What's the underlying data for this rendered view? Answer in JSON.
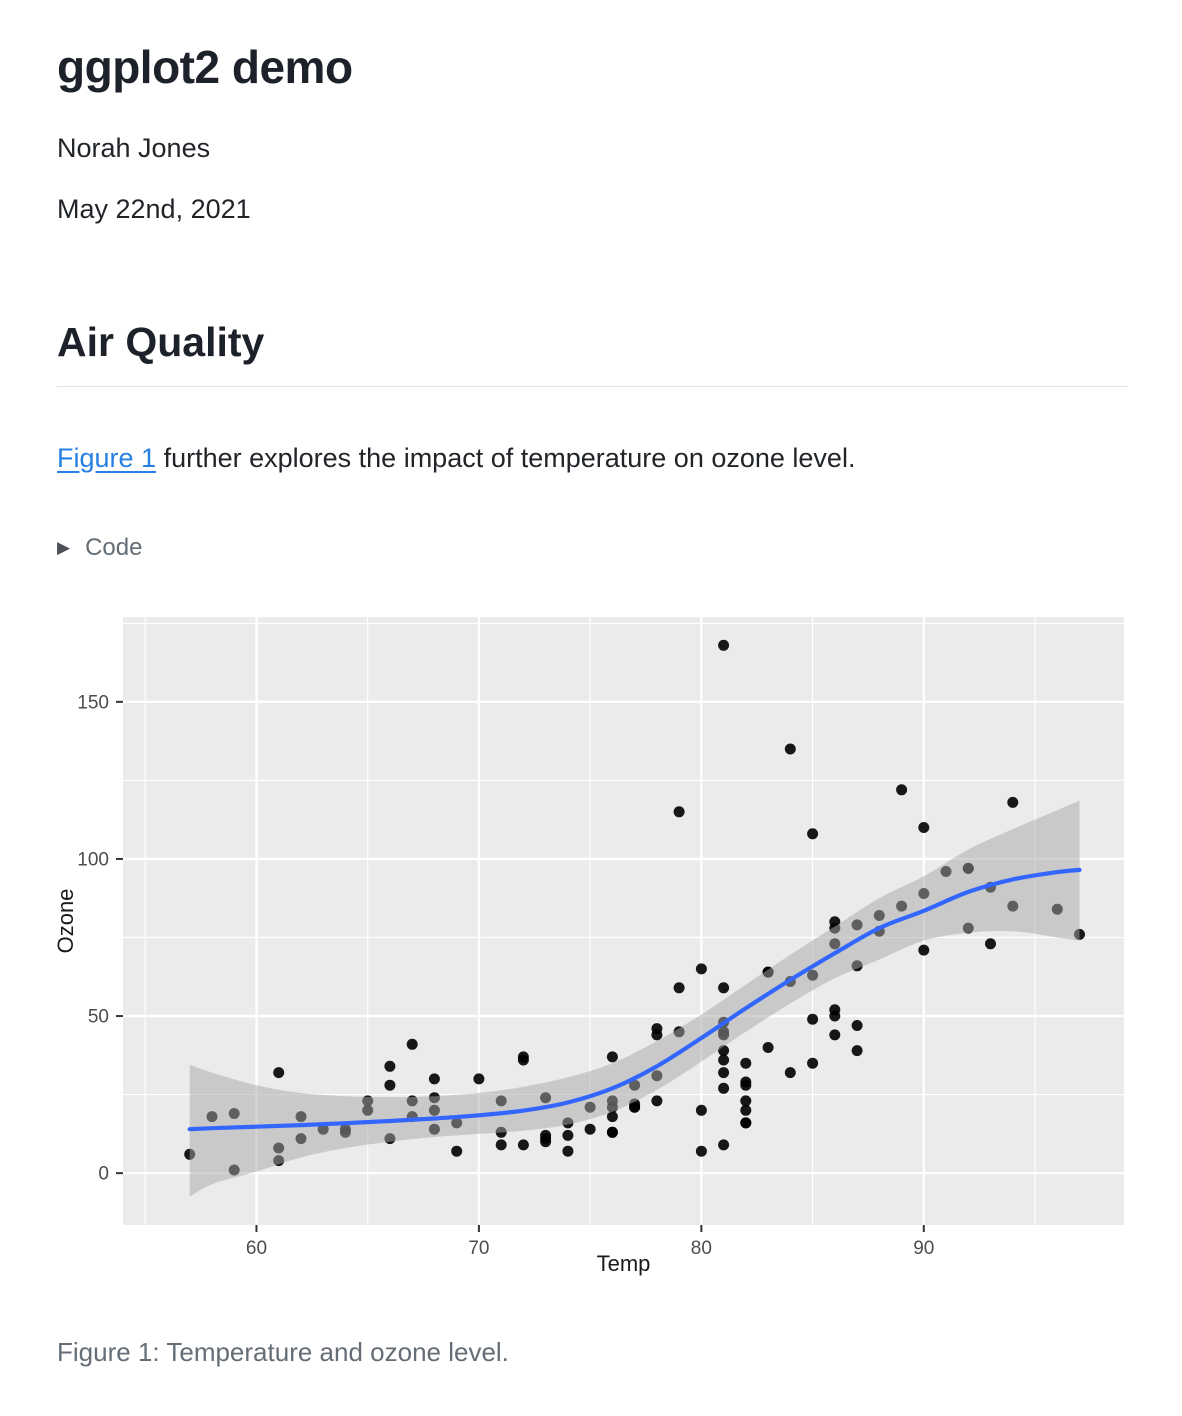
{
  "document": {
    "title": "ggplot2 demo",
    "author": "Norah Jones",
    "date": "May 22nd, 2021",
    "section_heading": "Air Quality",
    "paragraph": {
      "link_text": "Figure 1",
      "text_after_link": " further explores the impact of temperature on ozone level."
    },
    "code_folding_label": "Code",
    "figure_caption": "Figure 1: Temperature and ozone level."
  },
  "colors": {
    "link": "#2780e3",
    "body_text": "#212529",
    "muted_text": "#646c74",
    "caption_text": "#656d76",
    "heading_rule": "#dee2e6"
  },
  "chart_data": {
    "type": "scatter",
    "title": "",
    "xlabel": "Temp",
    "ylabel": "Ozone",
    "xlim": [
      54,
      99
    ],
    "ylim": [
      -16.5,
      177
    ],
    "x_ticks": [
      60,
      70,
      80,
      90
    ],
    "y_ticks": [
      0,
      50,
      100,
      150
    ],
    "x_minor": [
      55,
      65,
      75,
      85,
      95
    ],
    "y_minor": [
      25,
      75,
      125,
      175
    ],
    "grid": "on",
    "panel_bg": "#EBEBEB",
    "grid_color": "#FFFFFF",
    "point_color": "#000000",
    "line_color": "#3366FF",
    "ribbon_color": "#A8A8A8",
    "axis_text_color": "#4D4D4D",
    "axis_title_color": "#1A1A1A",
    "points_format": "[temp, ozone]",
    "points": [
      [
        67,
        41
      ],
      [
        72,
        36
      ],
      [
        74,
        12
      ],
      [
        62,
        18
      ],
      [
        66,
        28
      ],
      [
        65,
        23
      ],
      [
        59,
        19
      ],
      [
        61,
        8
      ],
      [
        74,
        7
      ],
      [
        69,
        16
      ],
      [
        66,
        11
      ],
      [
        68,
        14
      ],
      [
        58,
        18
      ],
      [
        64,
        14
      ],
      [
        66,
        34
      ],
      [
        57,
        6
      ],
      [
        68,
        30
      ],
      [
        62,
        11
      ],
      [
        59,
        1
      ],
      [
        73,
        11
      ],
      [
        61,
        4
      ],
      [
        61,
        32
      ],
      [
        67,
        23
      ],
      [
        81,
        45
      ],
      [
        79,
        115
      ],
      [
        76,
        37
      ],
      [
        82,
        29
      ],
      [
        90,
        71
      ],
      [
        87,
        39
      ],
      [
        82,
        23
      ],
      [
        77,
        21
      ],
      [
        72,
        37
      ],
      [
        65,
        20
      ],
      [
        73,
        12
      ],
      [
        76,
        13
      ],
      [
        84,
        135
      ],
      [
        85,
        49
      ],
      [
        81,
        32
      ],
      [
        83,
        64
      ],
      [
        83,
        40
      ],
      [
        88,
        77
      ],
      [
        92,
        97
      ],
      [
        92,
        97
      ],
      [
        89,
        85
      ],
      [
        73,
        10
      ],
      [
        81,
        27
      ],
      [
        80,
        7
      ],
      [
        81,
        48
      ],
      [
        82,
        35
      ],
      [
        84,
        61
      ],
      [
        87,
        79
      ],
      [
        85,
        63
      ],
      [
        74,
        16
      ],
      [
        86,
        80
      ],
      [
        85,
        108
      ],
      [
        82,
        20
      ],
      [
        86,
        52
      ],
      [
        88,
        82
      ],
      [
        86,
        50
      ],
      [
        83,
        64
      ],
      [
        81,
        59
      ],
      [
        81,
        39
      ],
      [
        81,
        9
      ],
      [
        82,
        16
      ],
      [
        86,
        78
      ],
      [
        85,
        35
      ],
      [
        87,
        66
      ],
      [
        89,
        122
      ],
      [
        90,
        89
      ],
      [
        90,
        110
      ],
      [
        86,
        44
      ],
      [
        82,
        28
      ],
      [
        80,
        65
      ],
      [
        77,
        22
      ],
      [
        79,
        59
      ],
      [
        76,
        23
      ],
      [
        78,
        31
      ],
      [
        78,
        44
      ],
      [
        77,
        21
      ],
      [
        72,
        9
      ],
      [
        79,
        45
      ],
      [
        81,
        168
      ],
      [
        86,
        73
      ],
      [
        97,
        76
      ],
      [
        94,
        118
      ],
      [
        96,
        84
      ],
      [
        94,
        85
      ],
      [
        91,
        96
      ],
      [
        92,
        78
      ],
      [
        93,
        73
      ],
      [
        93,
        91
      ],
      [
        87,
        47
      ],
      [
        84,
        32
      ],
      [
        80,
        20
      ],
      [
        78,
        23
      ],
      [
        75,
        21
      ],
      [
        73,
        24
      ],
      [
        81,
        44
      ],
      [
        76,
        21
      ],
      [
        77,
        28
      ],
      [
        71,
        9
      ],
      [
        71,
        13
      ],
      [
        78,
        46
      ],
      [
        67,
        18
      ],
      [
        76,
        13
      ],
      [
        68,
        24
      ],
      [
        82,
        16
      ],
      [
        64,
        13
      ],
      [
        71,
        23
      ],
      [
        81,
        36
      ],
      [
        69,
        7
      ],
      [
        63,
        14
      ],
      [
        70,
        30
      ],
      [
        75,
        14
      ],
      [
        76,
        18
      ],
      [
        68,
        20
      ]
    ],
    "smooth_format": "[temp, fit, ci_low, ci_high]",
    "smooth_method": "loess",
    "smooth": [
      [
        57,
        14.0,
        -7.5,
        34.5
      ],
      [
        58,
        14.3,
        -3.5,
        32.0
      ],
      [
        60,
        14.8,
        0.5,
        28.0
      ],
      [
        62,
        15.3,
        5.0,
        25.5
      ],
      [
        64,
        15.9,
        8.0,
        24.5
      ],
      [
        66,
        16.6,
        10.0,
        24.2
      ],
      [
        68,
        17.4,
        11.5,
        24.5
      ],
      [
        70,
        18.4,
        12.5,
        25.5
      ],
      [
        72,
        19.9,
        13.5,
        27.5
      ],
      [
        74,
        22.5,
        15.5,
        30.5
      ],
      [
        76,
        27.0,
        19.5,
        35.0
      ],
      [
        78,
        34.0,
        26.5,
        42.0
      ],
      [
        80,
        43.0,
        35.5,
        50.5
      ],
      [
        82,
        52.5,
        45.0,
        60.0
      ],
      [
        84,
        61.5,
        54.0,
        69.5
      ],
      [
        86,
        70.0,
        62.0,
        78.5
      ],
      [
        88,
        78.0,
        68.0,
        87.5
      ],
      [
        90,
        83.5,
        74.0,
        94.5
      ],
      [
        92,
        89.5,
        76.5,
        103.0
      ],
      [
        94,
        93.5,
        77.0,
        109.5
      ],
      [
        96,
        95.8,
        75.0,
        115.5
      ],
      [
        97,
        96.5,
        74.0,
        118.5
      ]
    ]
  }
}
